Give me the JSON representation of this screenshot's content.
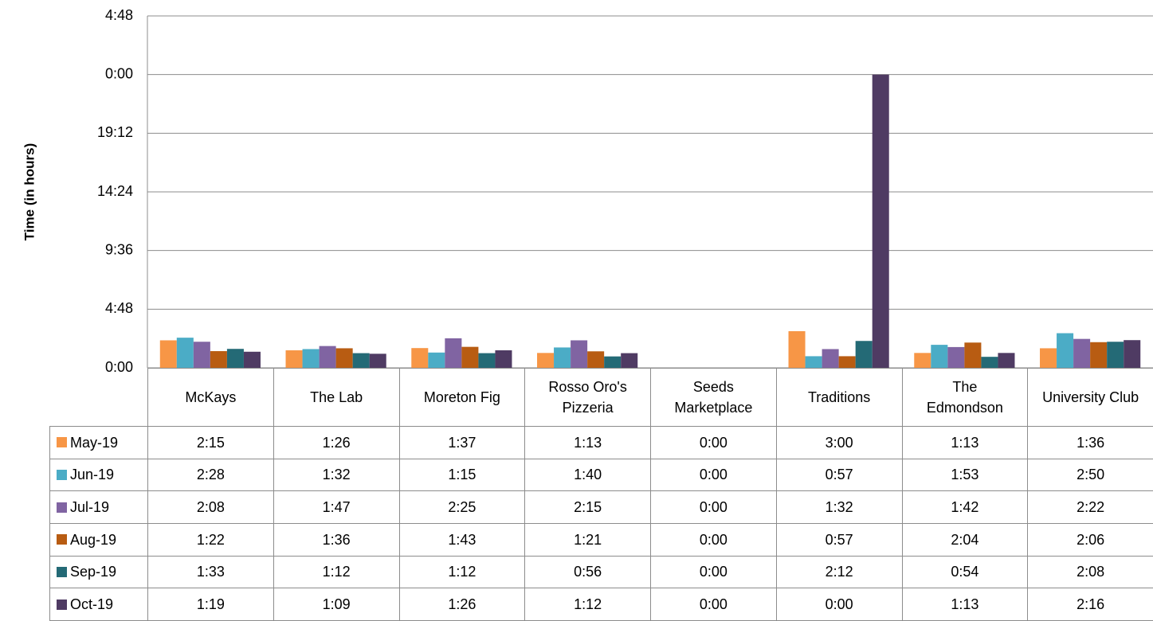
{
  "chart_data": {
    "type": "bar",
    "y_label": "Time (in hours)",
    "categories": [
      "McKays",
      "The Lab",
      "Moreton Fig",
      "Rosso Oro's Pizzeria",
      "Seeds Marketplace",
      "Traditions",
      "The Edmondson",
      "University Club"
    ],
    "ylim": [
      0,
      1728
    ],
    "yticks": [
      {
        "value": 0,
        "label": "0:00"
      },
      {
        "value": 288,
        "label": "4:48"
      },
      {
        "value": 576,
        "label": "9:36"
      },
      {
        "value": 864,
        "label": "14:24"
      },
      {
        "value": 1152,
        "label": "19:12"
      },
      {
        "value": 1440,
        "label": "0:00"
      },
      {
        "value": 1728,
        "label": "4:48"
      }
    ],
    "grid": true,
    "series": [
      {
        "name": "May-19",
        "color": "#f79646",
        "values": [
          135,
          86,
          97,
          73,
          0,
          180,
          73,
          96
        ],
        "value_labels": [
          "2:15",
          "1:26",
          "1:37",
          "1:13",
          "0:00",
          "3:00",
          "1:13",
          "1:36"
        ]
      },
      {
        "name": "Jun-19",
        "color": "#4bacc6",
        "values": [
          148,
          92,
          75,
          100,
          0,
          57,
          113,
          170
        ],
        "value_labels": [
          "2:28",
          "1:32",
          "1:15",
          "1:40",
          "0:00",
          "0:57",
          "1:53",
          "2:50"
        ]
      },
      {
        "name": "Jul-19",
        "color": "#8064a2",
        "values": [
          128,
          107,
          145,
          135,
          0,
          92,
          102,
          142
        ],
        "value_labels": [
          "2:08",
          "1:47",
          "2:25",
          "2:15",
          "0:00",
          "1:32",
          "1:42",
          "2:22"
        ]
      },
      {
        "name": "Aug-19",
        "color": "#b85c12",
        "values": [
          82,
          96,
          103,
          81,
          0,
          57,
          124,
          126
        ],
        "value_labels": [
          "1:22",
          "1:36",
          "1:43",
          "1:21",
          "0:00",
          "0:57",
          "2:04",
          "2:06"
        ]
      },
      {
        "name": "Sep-19",
        "color": "#246a76",
        "values": [
          93,
          72,
          72,
          56,
          0,
          132,
          54,
          128
        ],
        "value_labels": [
          "1:33",
          "1:12",
          "1:12",
          "0:56",
          "0:00",
          "2:12",
          "0:54",
          "2:08"
        ]
      },
      {
        "name": "Oct-19",
        "color": "#4f3b63",
        "values": [
          79,
          69,
          86,
          72,
          0,
          1440,
          73,
          136
        ],
        "value_labels": [
          "1:19",
          "1:09",
          "1:26",
          "1:12",
          "0:00",
          "0:00",
          "1:13",
          "2:16"
        ]
      }
    ]
  }
}
